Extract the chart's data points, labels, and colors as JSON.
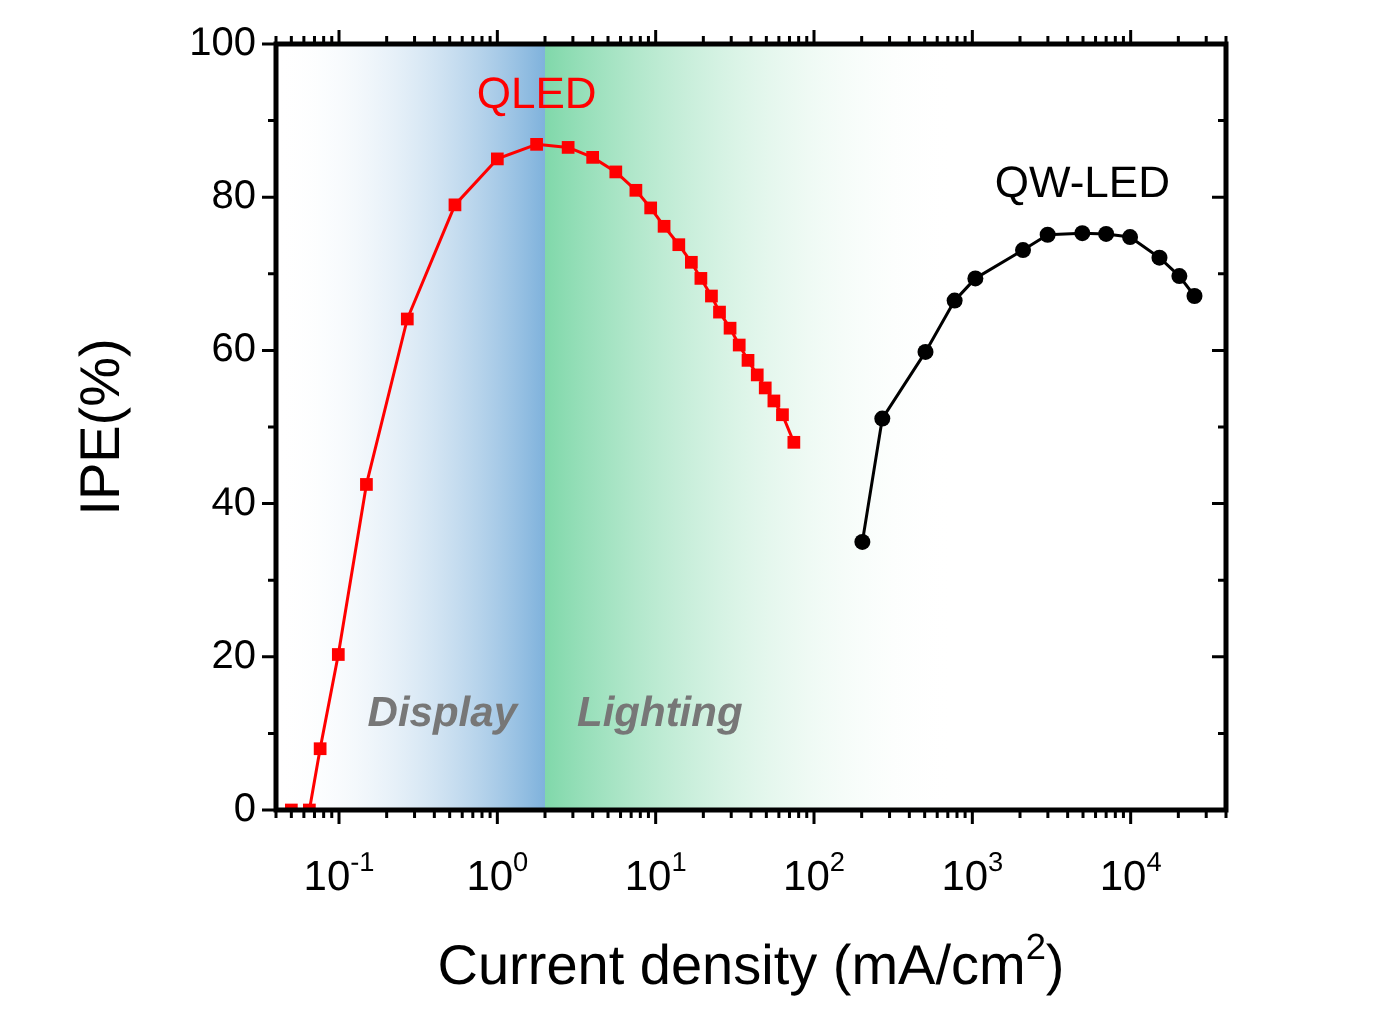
{
  "chart_data": {
    "type": "line",
    "xlabel": "Current density (mA/cm$^{2}$)",
    "ylabel": "IPE(%)",
    "log": "x",
    "xlim": [
      0.04,
      40000
    ],
    "xticks": [
      {
        "value": 0.1,
        "label": "10$^{-1}$"
      },
      {
        "value": 1,
        "label": "10$^{0}$"
      },
      {
        "value": 10,
        "label": "10$^{1}$"
      },
      {
        "value": 100,
        "label": "10$^{2}$"
      },
      {
        "value": 1000,
        "label": "10$^{3}$"
      },
      {
        "value": 10000,
        "label": "10$^{4}$"
      }
    ],
    "ylim": [
      0,
      100
    ],
    "yticks": [
      0,
      20,
      40,
      60,
      80,
      100
    ],
    "bands": [
      {
        "axis": "x",
        "from": 0.04,
        "to": 2,
        "label": "Display",
        "color": "#7fb2dc"
      },
      {
        "axis": "x",
        "from": 2,
        "to": 800,
        "label": "Lighting",
        "color": "#80d8aa"
      }
    ],
    "series": [
      {
        "name": "QLED",
        "color": "#ff0000",
        "marker": "square",
        "x": [
          0.05,
          0.065,
          0.076,
          0.099,
          0.149,
          0.27,
          0.54,
          1.0,
          1.77,
          2.8,
          4.0,
          5.6,
          7.5,
          9.3,
          11.3,
          14,
          16.8,
          19.3,
          22.5,
          25.3,
          29.5,
          33.7,
          38.3,
          43.8,
          49.2,
          55.8,
          63.2,
          74.6
        ],
        "values": [
          0,
          0,
          8,
          20.3,
          42.5,
          64.1,
          79,
          85,
          86.9,
          86.5,
          85.2,
          83.3,
          80.9,
          78.6,
          76.2,
          73.8,
          71.5,
          69.4,
          67.1,
          65,
          62.9,
          60.7,
          58.7,
          56.8,
          55.1,
          53.4,
          51.6,
          48
        ]
      },
      {
        "name": "QW-LED",
        "color": "#000000",
        "marker": "circle",
        "x": [
          202,
          270,
          506,
          773,
          1045,
          2090,
          2990,
          4950,
          7000,
          9910,
          15200,
          20300,
          25300
        ],
        "values": [
          35,
          51.1,
          59.8,
          66.5,
          69.4,
          73.1,
          75.1,
          75.3,
          75.2,
          74.8,
          72.1,
          69.7,
          67.1
        ]
      }
    ]
  }
}
